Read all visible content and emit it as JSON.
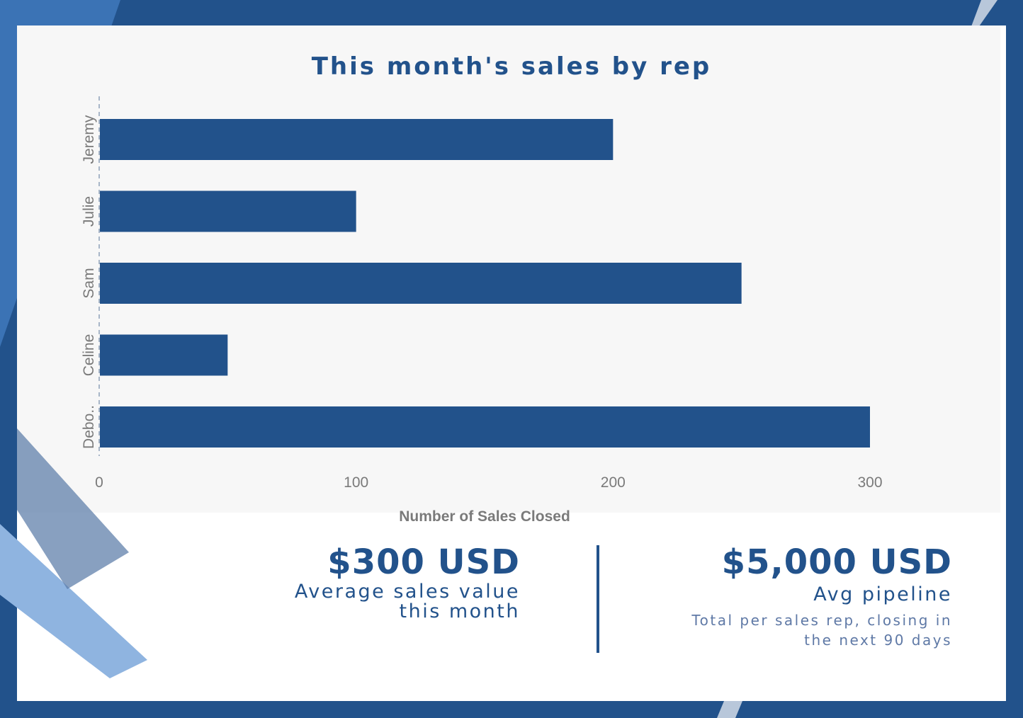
{
  "theme": {
    "navy": "#22528b",
    "panel": "#f7f7f7",
    "light_blue": "#8fb4e0",
    "muted_text": "#7a7a7a"
  },
  "chart_data": {
    "type": "bar",
    "orientation": "horizontal",
    "title": "This month's sales by rep",
    "categories": [
      "Jeremy",
      "Julie",
      "Sam",
      "Celine",
      "Debo.."
    ],
    "values": [
      200,
      100,
      250,
      50,
      300
    ],
    "xlabel": "Number of Sales Closed",
    "ylabel": "",
    "xlim": [
      0,
      350
    ],
    "xticks": [
      "0",
      "100",
      "200",
      "300"
    ],
    "grid": false,
    "bar_color": "#22528b"
  },
  "kpis": [
    {
      "value": "$300 USD",
      "label_line1": "Average sales value",
      "label_line2": "this month"
    },
    {
      "value": "$5,000 USD",
      "label": "Avg pipeline",
      "sub_line1": "Total per sales rep, closing in",
      "sub_line2": "the next 90 days"
    }
  ]
}
